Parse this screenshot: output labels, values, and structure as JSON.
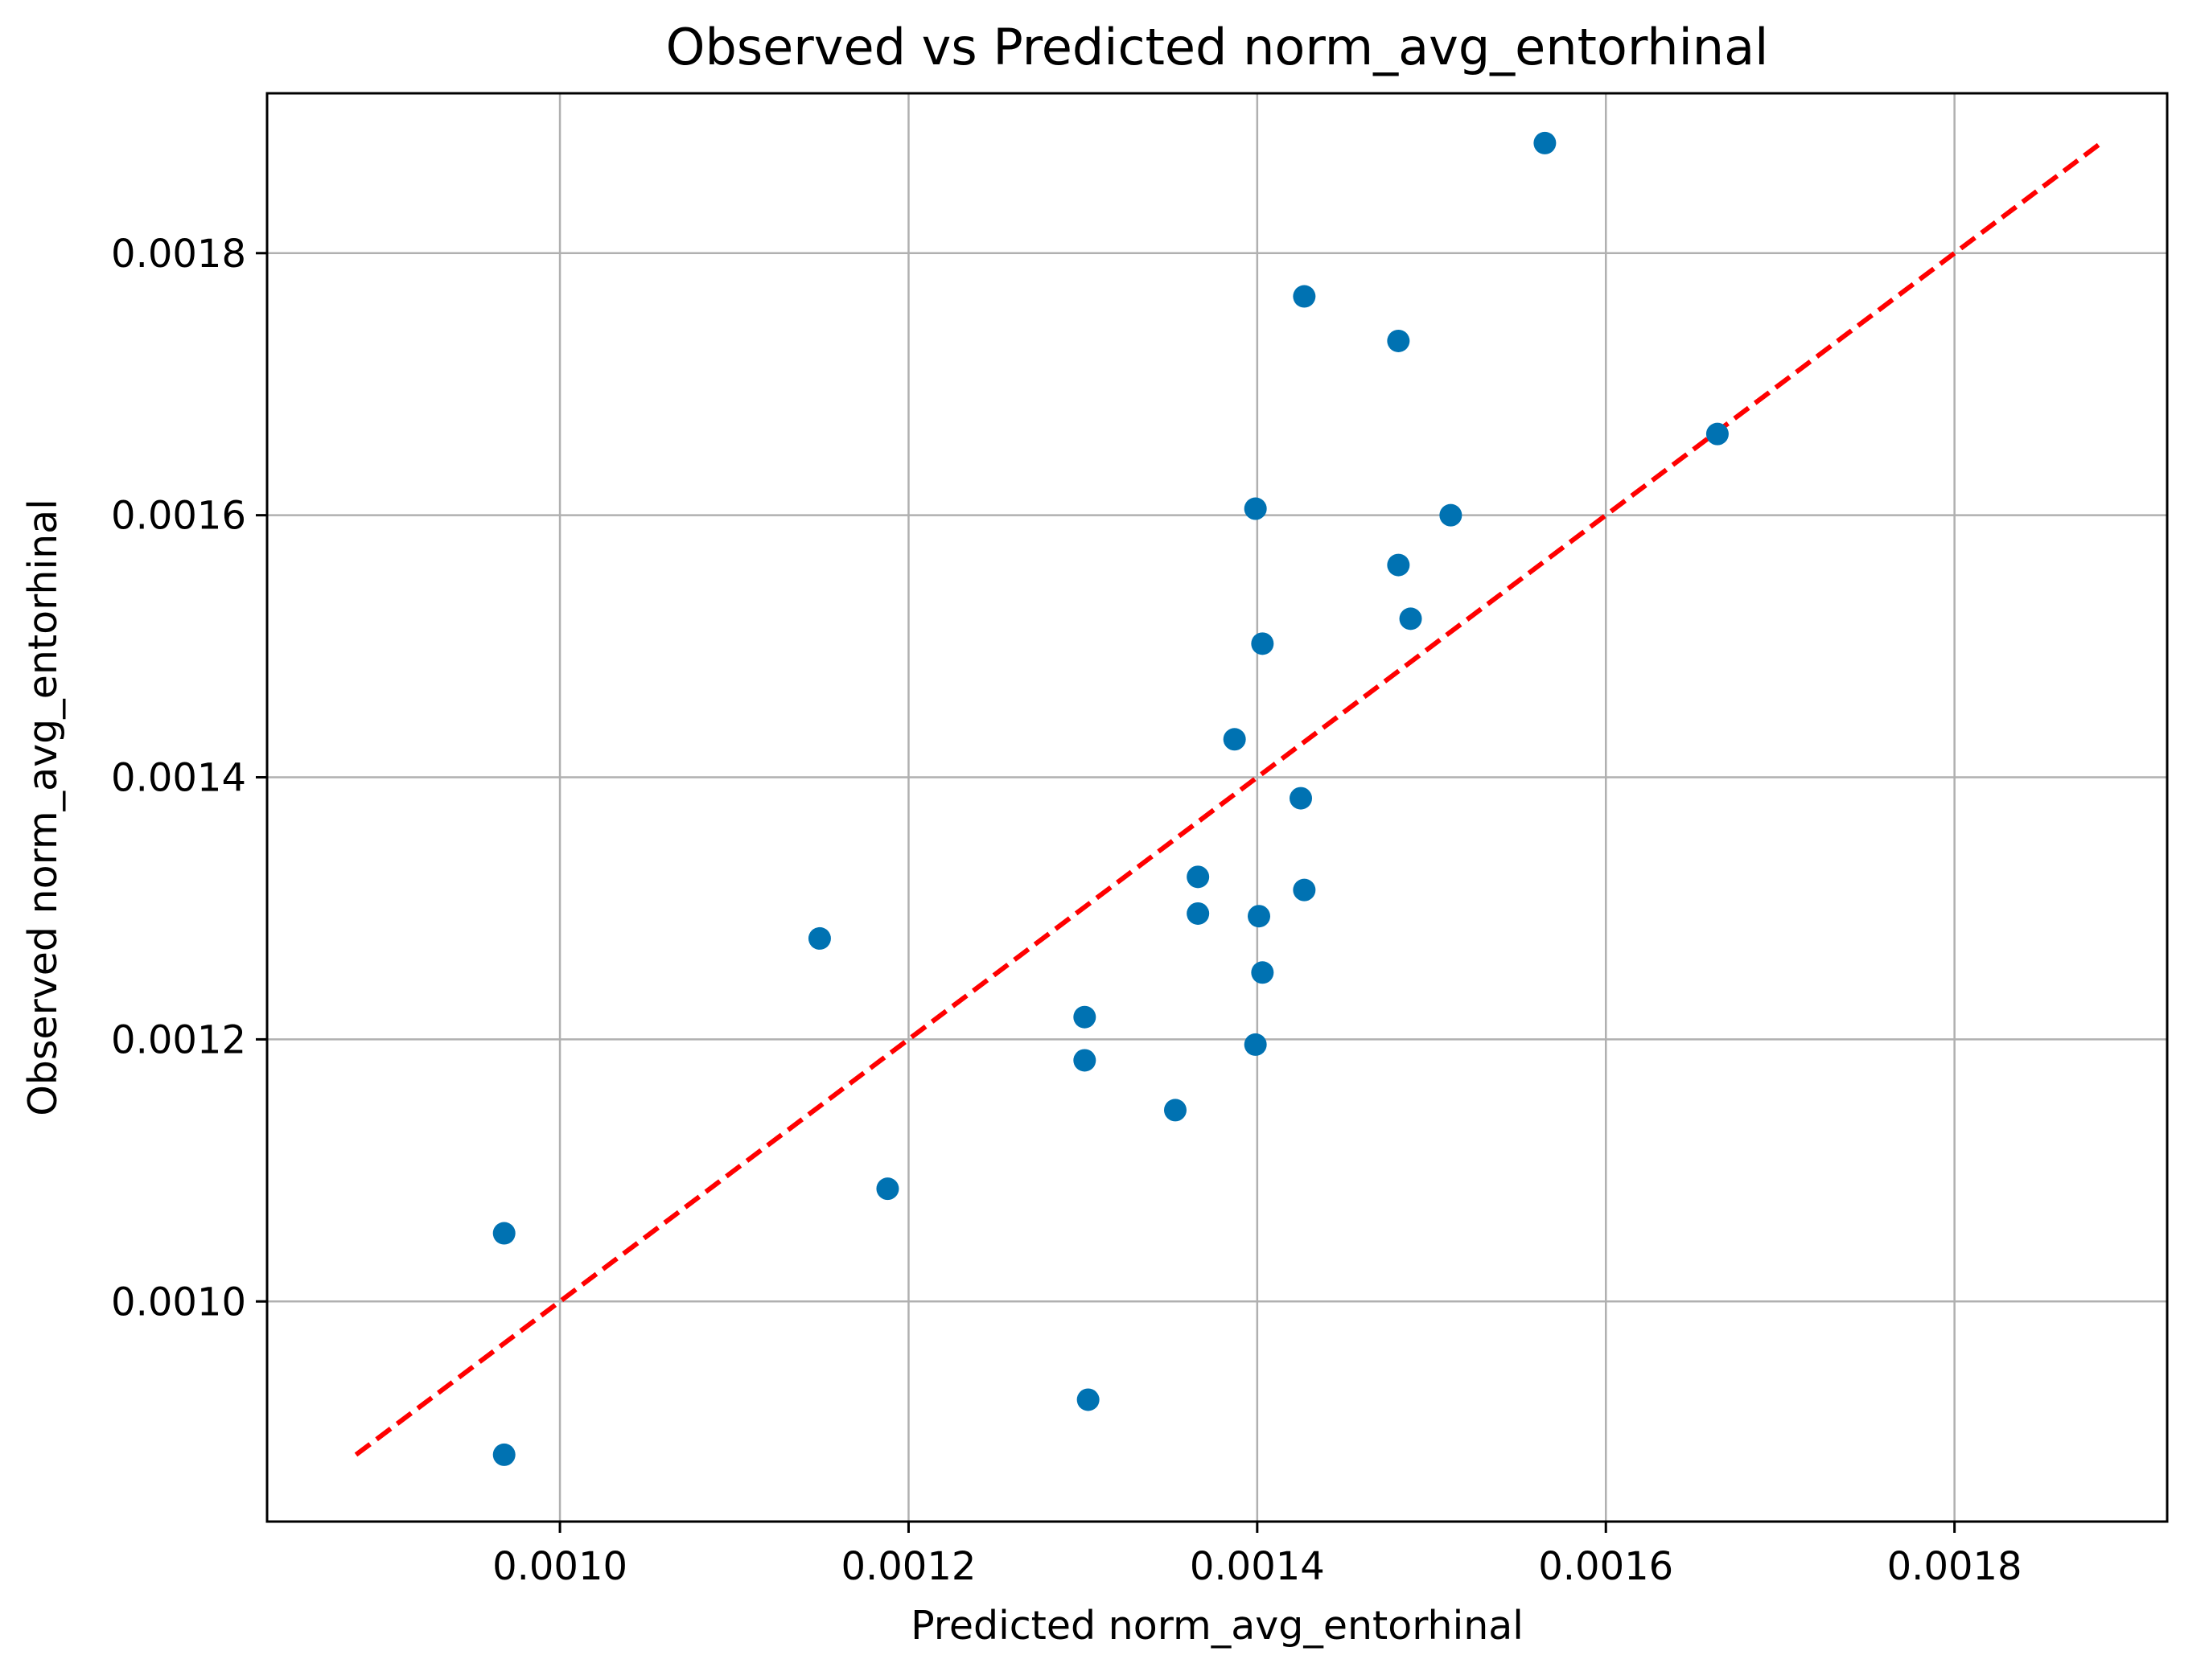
{
  "chart_data": {
    "type": "scatter",
    "title": "Observed vs Predicted norm_avg_entorhinal",
    "xlabel": "Predicted norm_avg_entorhinal",
    "ylabel": "Observed norm_avg_entorhinal",
    "xlim": [
      0.000832,
      0.001922
    ],
    "ylim": [
      0.000832,
      0.001922
    ],
    "xticks": [
      0.001,
      0.0012,
      0.0014,
      0.0016,
      0.0018
    ],
    "yticks": [
      0.001,
      0.0012,
      0.0014,
      0.0016,
      0.0018
    ],
    "xtick_labels": [
      "0.0010",
      "0.0012",
      "0.0014",
      "0.0016",
      "0.0018"
    ],
    "ytick_labels": [
      "0.0010",
      "0.0012",
      "0.0014",
      "0.0016",
      "0.0018"
    ],
    "grid": true,
    "point_color": "#0072b2",
    "reference_line": {
      "style": "dashed",
      "color": "#ff0000",
      "from": [
        0.000883,
        0.000883
      ],
      "to": [
        0.001885,
        0.001885
      ]
    },
    "points": [
      {
        "x": 0.001565,
        "y": 0.001884
      },
      {
        "x": 0.001427,
        "y": 0.001767
      },
      {
        "x": 0.001481,
        "y": 0.001733
      },
      {
        "x": 0.001664,
        "y": 0.001662
      },
      {
        "x": 0.001399,
        "y": 0.001605
      },
      {
        "x": 0.001511,
        "y": 0.0016
      },
      {
        "x": 0.001481,
        "y": 0.001562
      },
      {
        "x": 0.001488,
        "y": 0.001521
      },
      {
        "x": 0.001403,
        "y": 0.001502
      },
      {
        "x": 0.001387,
        "y": 0.001429
      },
      {
        "x": 0.001425,
        "y": 0.001384
      },
      {
        "x": 0.001366,
        "y": 0.001324
      },
      {
        "x": 0.001427,
        "y": 0.001314
      },
      {
        "x": 0.001366,
        "y": 0.001296
      },
      {
        "x": 0.001401,
        "y": 0.001294
      },
      {
        "x": 0.001149,
        "y": 0.001277
      },
      {
        "x": 0.001403,
        "y": 0.001251
      },
      {
        "x": 0.001301,
        "y": 0.001217
      },
      {
        "x": 0.001399,
        "y": 0.001196
      },
      {
        "x": 0.001301,
        "y": 0.001184
      },
      {
        "x": 0.001353,
        "y": 0.001146
      },
      {
        "x": 0.001188,
        "y": 0.001086
      },
      {
        "x": 0.000968,
        "y": 0.001052
      },
      {
        "x": 0.001303,
        "y": 0.000925
      },
      {
        "x": 0.000968,
        "y": 0.000883
      }
    ]
  }
}
